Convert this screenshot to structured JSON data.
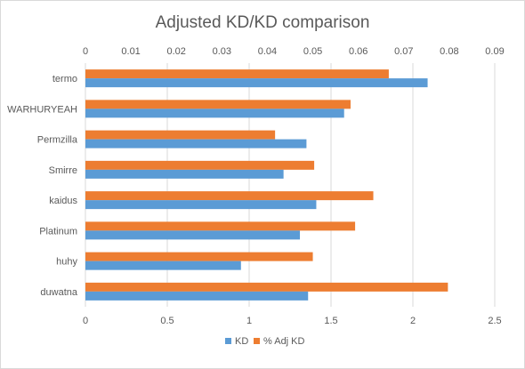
{
  "chart_data": {
    "type": "bar",
    "orientation": "horizontal",
    "title": "Adjusted KD/KD comparison",
    "categories": [
      "termo",
      "WARHURYEAH",
      "Permzilla",
      "Smirre",
      "kaidus",
      "Platinum",
      "huhy",
      "duwatna"
    ],
    "series": [
      {
        "name": "KD",
        "axis": "bottom",
        "color": "#5b9bd5",
        "values": [
          2.09,
          1.58,
          1.35,
          1.21,
          1.41,
          1.31,
          0.95,
          1.36
        ]
      },
      {
        "name": "% Adj KD",
        "axis": "top",
        "color": "#ed7d31",
        "values": [
          0.0667,
          0.0583,
          0.0417,
          0.0503,
          0.0633,
          0.0593,
          0.05,
          0.0797
        ]
      }
    ],
    "axes": {
      "bottom": {
        "min": 0,
        "max": 2.5,
        "ticks": [
          "0",
          "0.5",
          "1",
          "1.5",
          "2",
          "2.5"
        ]
      },
      "top": {
        "min": 0,
        "max": 0.09,
        "ticks": [
          "0",
          "0.01",
          "0.02",
          "0.03",
          "0.04",
          "0.05",
          "0.06",
          "0.07",
          "0.08",
          "0.09"
        ]
      }
    },
    "grid": true,
    "legend_position": "bottom"
  }
}
